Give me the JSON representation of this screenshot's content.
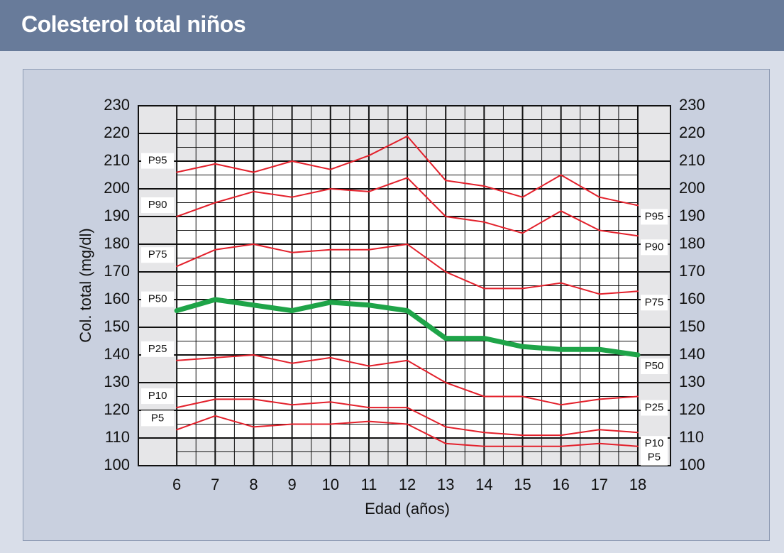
{
  "chart_data": {
    "type": "line",
    "title": "Colesterol total niños",
    "x_label": "Edad (años)",
    "y_label": "Col. total (mg/dl)",
    "x": [
      6,
      7,
      8,
      9,
      10,
      11,
      12,
      13,
      14,
      15,
      16,
      17,
      18
    ],
    "xlim": [
      5,
      18.85
    ],
    "xticks": [
      6,
      7,
      8,
      9,
      10,
      11,
      12,
      13,
      14,
      15,
      16,
      17,
      18
    ],
    "ylim": [
      100,
      230
    ],
    "yticks": [
      100,
      110,
      120,
      130,
      140,
      150,
      160,
      170,
      180,
      190,
      200,
      210,
      220,
      230
    ],
    "grid": true,
    "series": [
      {
        "name": "P95",
        "color": "#e3202b",
        "values": [
          206,
          209,
          206,
          210,
          207,
          212,
          219,
          203,
          201,
          197,
          205,
          197,
          194
        ]
      },
      {
        "name": "P90",
        "color": "#e3202b",
        "values": [
          190,
          195,
          199,
          197,
          200,
          199,
          204,
          190,
          188,
          184,
          192,
          185,
          183
        ]
      },
      {
        "name": "P75",
        "color": "#e3202b",
        "values": [
          172,
          178,
          180,
          177,
          178,
          178,
          180,
          170,
          164,
          164,
          166,
          162,
          163
        ]
      },
      {
        "name": "P50",
        "color": "#1ea448",
        "values": [
          156,
          160,
          158,
          156,
          159,
          158,
          156,
          146,
          146,
          143,
          142,
          142,
          140
        ]
      },
      {
        "name": "P25",
        "color": "#e3202b",
        "values": [
          138,
          139,
          140,
          137,
          139,
          136,
          138,
          130,
          125,
          125,
          122,
          124,
          125
        ]
      },
      {
        "name": "P10",
        "color": "#e3202b",
        "values": [
          121,
          124,
          124,
          122,
          123,
          121,
          121,
          114,
          112,
          111,
          111,
          113,
          112
        ]
      },
      {
        "name": "P5",
        "color": "#e3202b",
        "values": [
          113,
          118,
          114,
          115,
          115,
          116,
          115,
          108,
          107,
          107,
          107,
          108,
          107
        ]
      }
    ]
  }
}
